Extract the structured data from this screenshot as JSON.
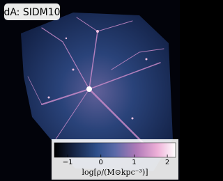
{
  "chart_data": {
    "type": "image",
    "title": "dA: SIDM10",
    "colorbar": {
      "label": "log[ρ/(M⊙kpc⁻³)]",
      "lim": [
        -1.4,
        2.25
      ],
      "ticks": [
        {
          "value": -1,
          "label": "−1"
        },
        0,
        1,
        2
      ]
    }
  }
}
